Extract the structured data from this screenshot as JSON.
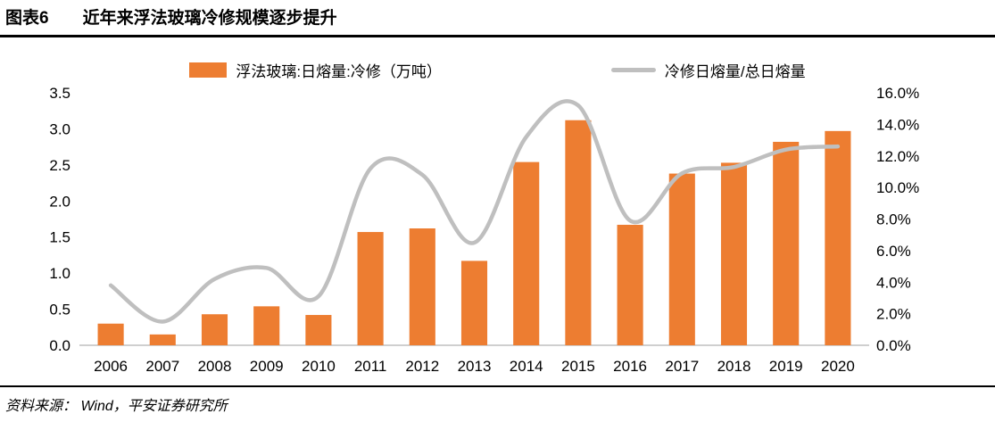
{
  "header": {
    "label": "图表6",
    "title": "近年来浮法玻璃冷修规模逐步提升"
  },
  "footer": {
    "source": "资料来源： Wind，平安证券研究所"
  },
  "colors": {
    "bar": "#ED7D31",
    "line": "#BFBFBF",
    "axis_line": "#BFBFBF",
    "text": "#000000"
  },
  "chart_data": {
    "type": "bar",
    "subtype": "combo-bar-line",
    "title": "近年来浮法玻璃冷修规模逐步提升",
    "categories": [
      "2006",
      "2007",
      "2008",
      "2009",
      "2010",
      "2011",
      "2012",
      "2013",
      "2014",
      "2015",
      "2016",
      "2017",
      "2018",
      "2019",
      "2020"
    ],
    "series": [
      {
        "name": "浮法玻璃:日熔量:冷修（万吨）",
        "type": "bar",
        "axis": "left",
        "color": "#ED7D31",
        "values": [
          0.3,
          0.15,
          0.43,
          0.54,
          0.42,
          1.57,
          1.62,
          1.17,
          2.54,
          3.12,
          1.67,
          2.38,
          2.53,
          2.82,
          2.97
        ]
      },
      {
        "name": "冷修日熔量/总日熔量",
        "type": "line",
        "axis": "right",
        "color": "#BFBFBF",
        "values_percent": [
          3.8,
          1.5,
          4.2,
          4.9,
          3.1,
          11.2,
          10.8,
          6.5,
          13.2,
          15.2,
          7.9,
          10.9,
          11.3,
          12.4,
          12.6
        ]
      }
    ],
    "left_axis": {
      "min": 0,
      "max": 3.5,
      "step": 0.5,
      "ticks": [
        "0.0",
        "0.5",
        "1.0",
        "1.5",
        "2.0",
        "2.5",
        "3.0",
        "3.5"
      ]
    },
    "right_axis": {
      "min": 0,
      "max": 16,
      "step": 2,
      "ticks": [
        "0.0%",
        "2.0%",
        "4.0%",
        "6.0%",
        "8.0%",
        "10.0%",
        "12.0%",
        "14.0%",
        "16.0%"
      ]
    },
    "xlabel": "",
    "ylabel": "",
    "legend_position": "top",
    "grid": false
  }
}
